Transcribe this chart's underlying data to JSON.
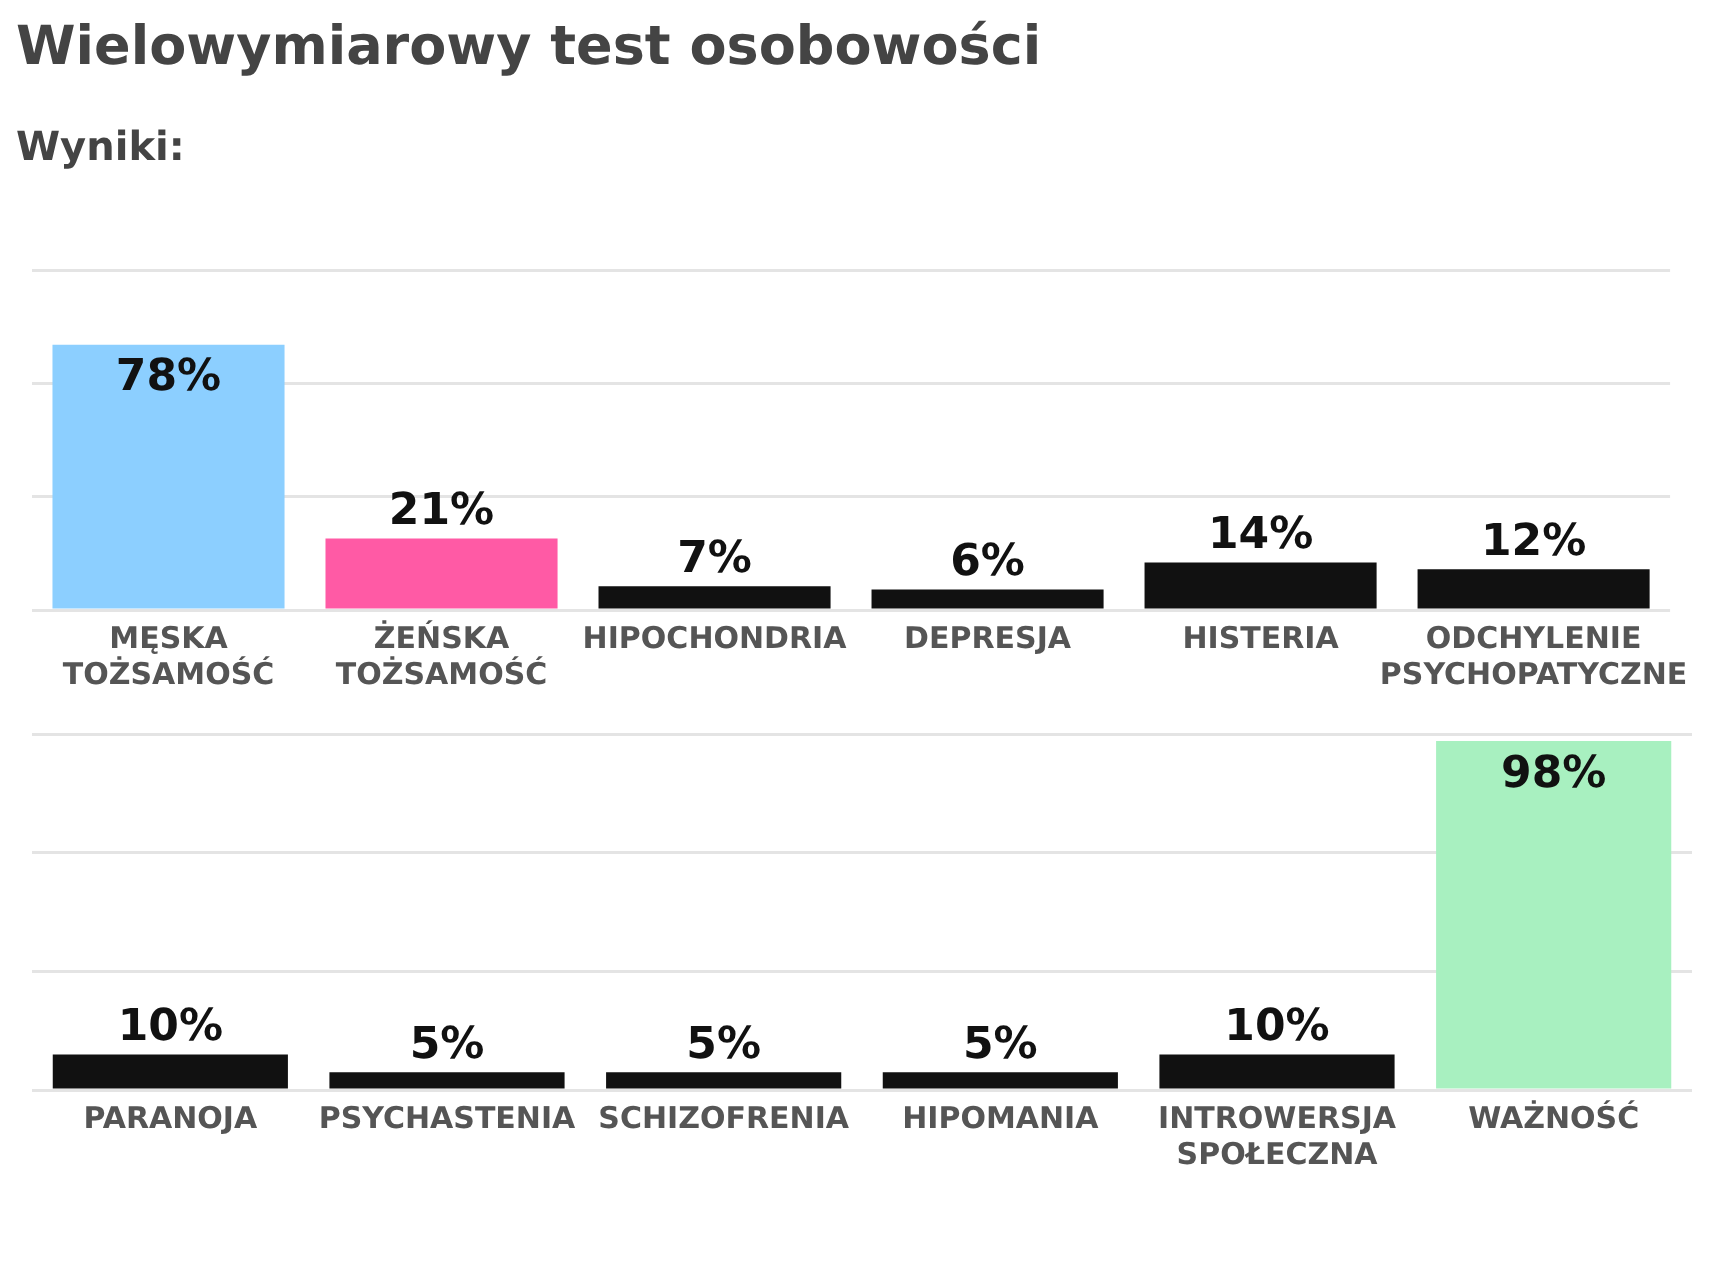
{
  "chart_data": [
    {
      "type": "bar",
      "title": "Wielowymiarowy test osobowości",
      "subtitle": "Wyniki:",
      "categories": [
        "MĘSKA TOŻSAMOŚĆ",
        "ŻEŃSKA TOŻSAMOŚĆ",
        "HIPOCHONDRIA",
        "DEPRESJA",
        "HISTERIA",
        "ODCHYLENIE PSYCHOPATYCZNE"
      ],
      "values": [
        78,
        21,
        7,
        6,
        14,
        12
      ],
      "colors": [
        "#8ccfff",
        "#ff5aa5",
        "#111111",
        "#111111",
        "#111111",
        "#111111"
      ],
      "value_labels": [
        "78%",
        "21%",
        "7%",
        "6%",
        "14%",
        "12%"
      ],
      "ylim": [
        0,
        100
      ],
      "yticks": [
        {
          "value": 0,
          "label": null
        },
        {
          "value": 33.3,
          "label": null
        },
        {
          "value": 66.7,
          "label": null
        },
        {
          "value": 100,
          "label": null
        }
      ],
      "grid": "y",
      "legend": false,
      "tick_labels": "x"
    },
    {
      "type": "bar",
      "categories": [
        "PARANOJA",
        "PSYCHASTENIA",
        "SCHIZOFRENIA",
        "HIPOMANIA",
        "INTROWERSJA SPOŁECZNA",
        "WAŻNOŚĆ"
      ],
      "values": [
        10,
        5,
        5,
        5,
        10,
        98
      ],
      "colors": [
        "#111111",
        "#111111",
        "#111111",
        "#111111",
        "#111111",
        "#a8f0c0"
      ],
      "value_labels": [
        "10%",
        "5%",
        "5%",
        "5%",
        "10%",
        "98%"
      ],
      "ylim": [
        0,
        100
      ],
      "yticks": [
        {
          "value": 0,
          "label": null
        },
        {
          "value": 33.3,
          "label": null
        },
        {
          "value": 66.7,
          "label": null
        },
        {
          "value": 100,
          "label": null
        }
      ],
      "grid": "y",
      "legend": false,
      "tick_labels": "x"
    }
  ]
}
